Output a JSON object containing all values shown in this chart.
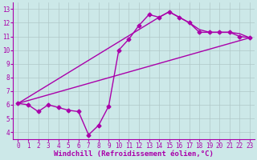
{
  "xlabel": "Windchill (Refroidissement éolien,°C)",
  "ylabel": "",
  "bg_color": "#cce8e8",
  "line_color": "#aa00aa",
  "grid_color": "#b0c8c8",
  "xlim": [
    -0.5,
    23.5
  ],
  "ylim": [
    3.5,
    13.5
  ],
  "xticks": [
    0,
    1,
    2,
    3,
    4,
    5,
    6,
    7,
    8,
    9,
    10,
    11,
    12,
    13,
    14,
    15,
    16,
    17,
    18,
    19,
    20,
    21,
    22,
    23
  ],
  "yticks": [
    4,
    5,
    6,
    7,
    8,
    9,
    10,
    11,
    12,
    13
  ],
  "line1_x": [
    0,
    1,
    2,
    3,
    4,
    5,
    6,
    7,
    8,
    9,
    10,
    11,
    12,
    13,
    14,
    15,
    16,
    17,
    18,
    19,
    20,
    21,
    22,
    23
  ],
  "line1_y": [
    6.1,
    6.0,
    5.5,
    6.0,
    5.8,
    5.6,
    5.5,
    3.8,
    4.5,
    5.9,
    10.0,
    10.8,
    11.8,
    12.6,
    12.4,
    12.8,
    12.4,
    12.0,
    11.3,
    11.3,
    11.3,
    11.3,
    11.0,
    10.9
  ],
  "line2_x": [
    0,
    23
  ],
  "line2_y": [
    6.1,
    10.9
  ],
  "line3_x": [
    0,
    14,
    15,
    16,
    17,
    18,
    19,
    20,
    21,
    22,
    23
  ],
  "line3_y": [
    6.1,
    12.4,
    12.8,
    12.4,
    12.0,
    11.5,
    11.3,
    11.3,
    11.3,
    11.2,
    10.9
  ],
  "marker": "D",
  "marker_size": 2.5,
  "line_width": 1.0,
  "font_size_label": 6.5,
  "font_size_tick": 5.5
}
